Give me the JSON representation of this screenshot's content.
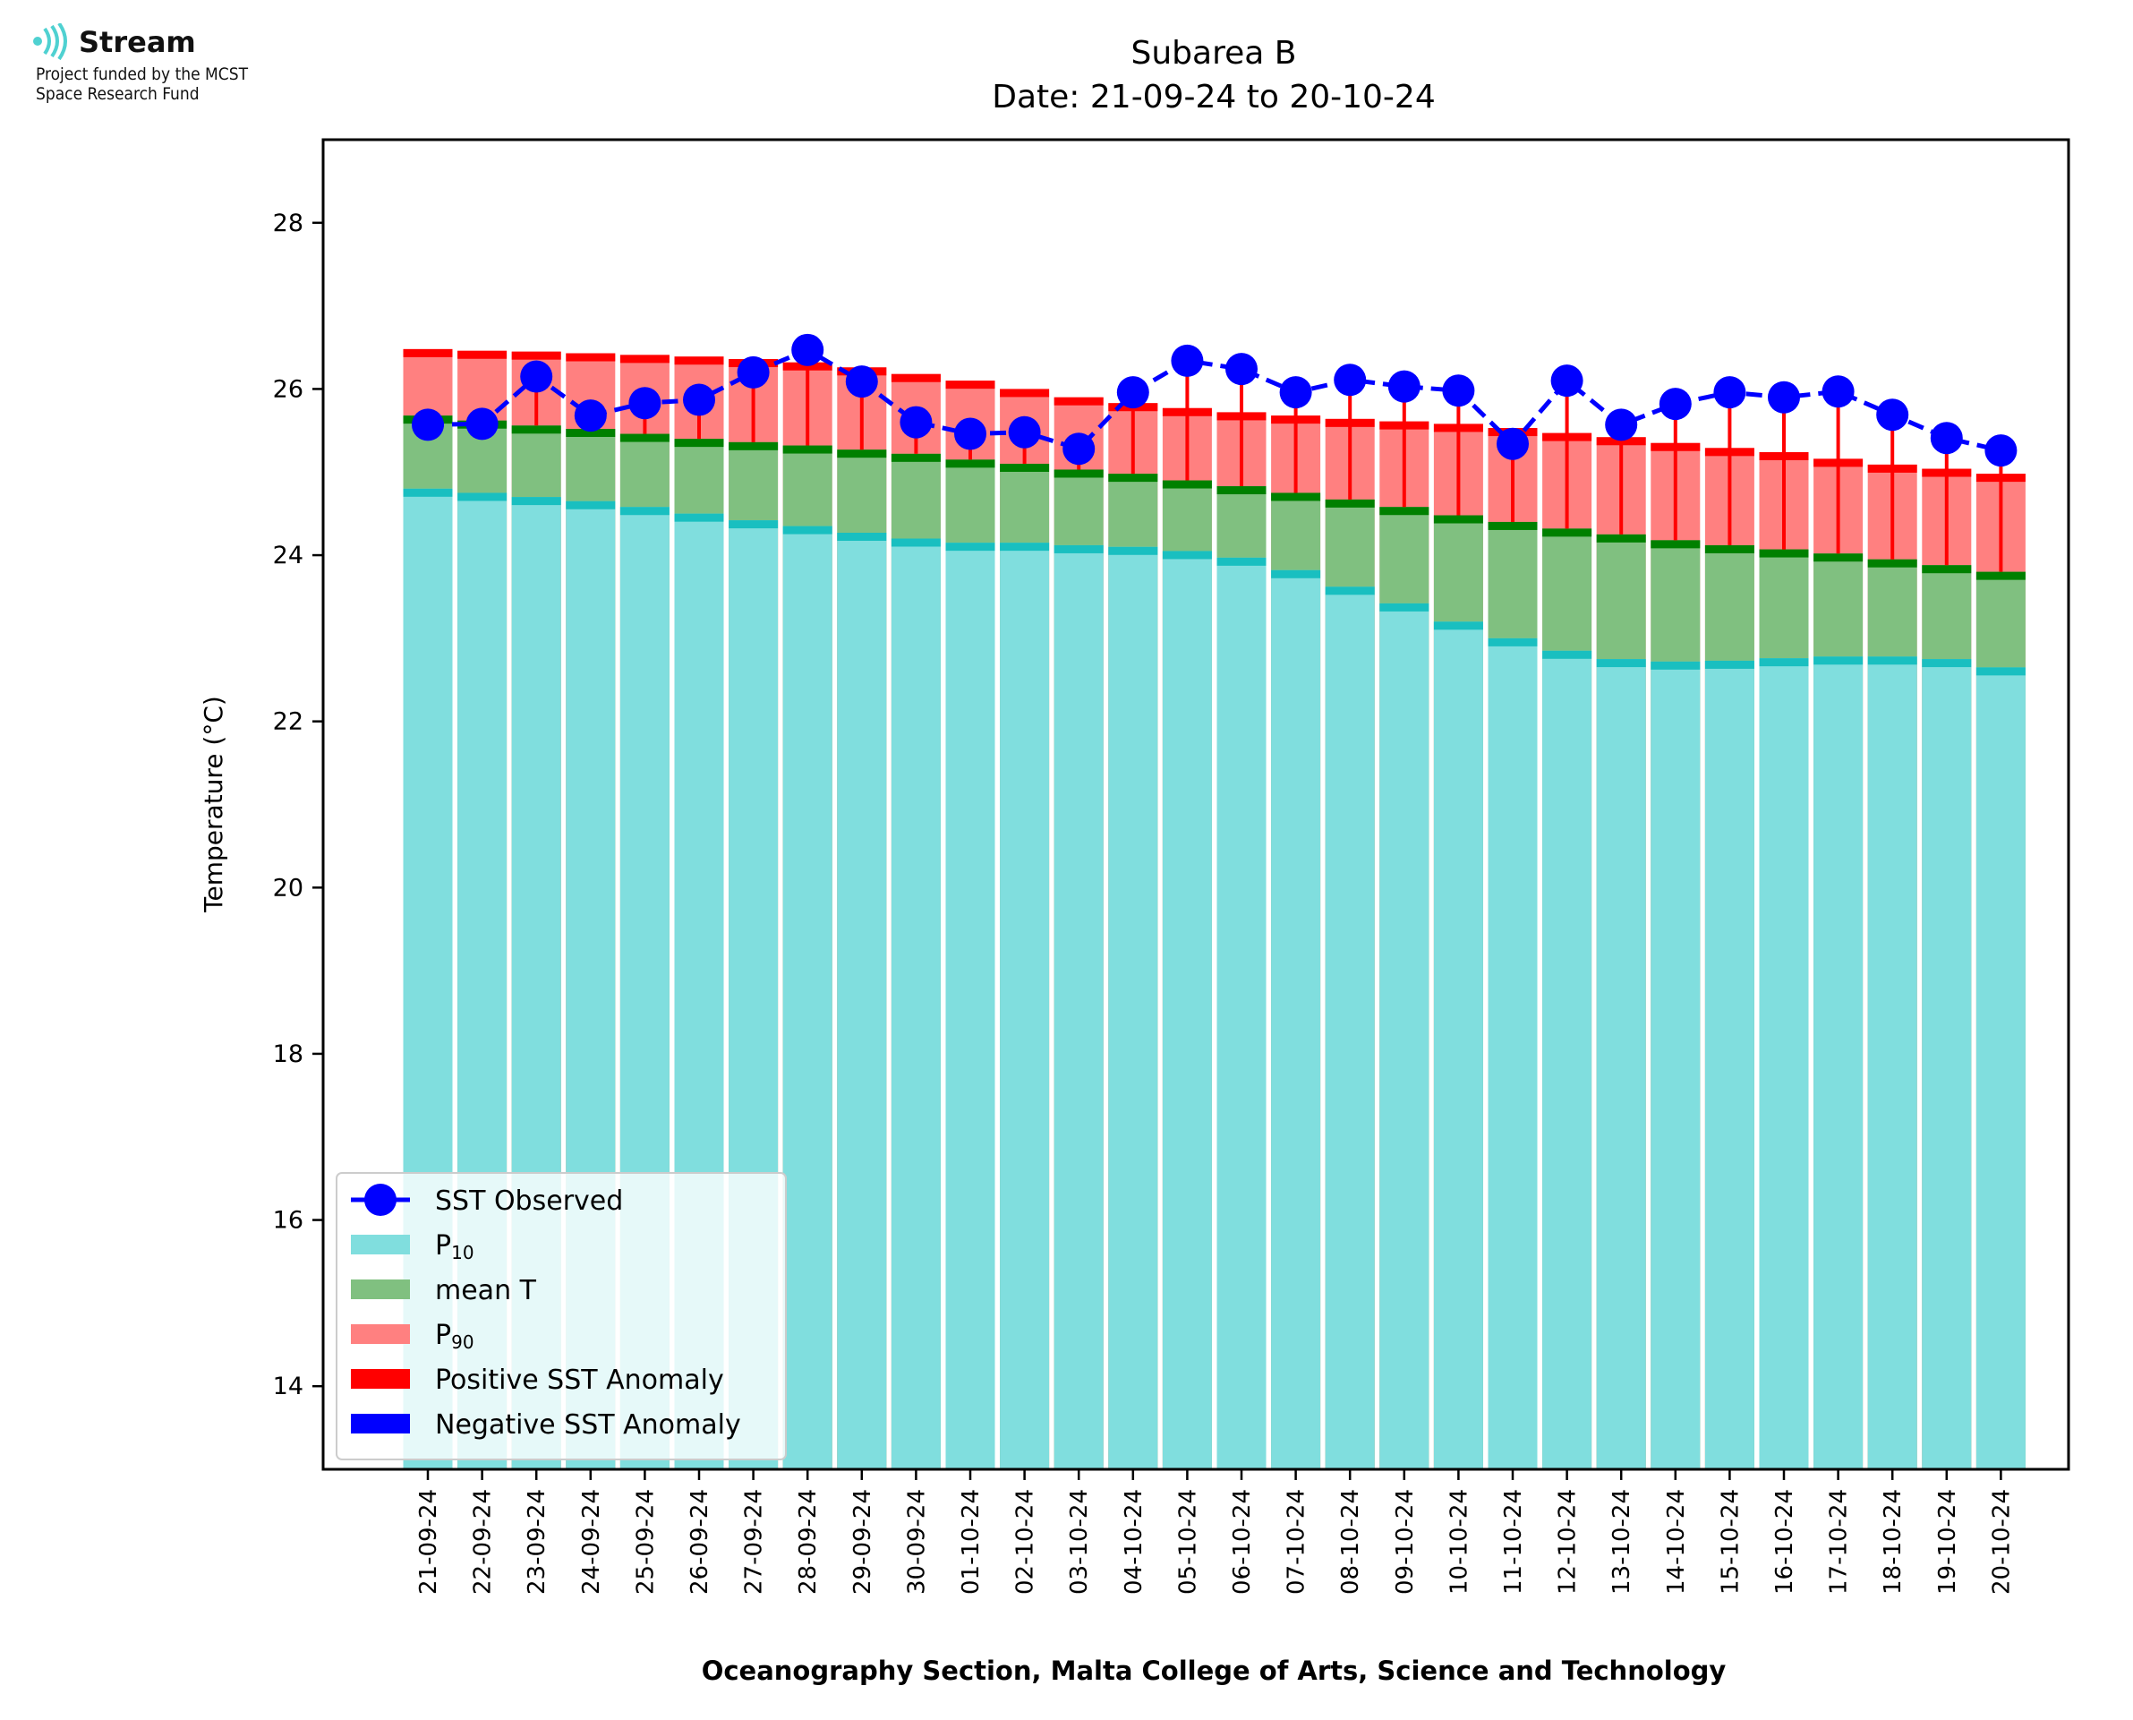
{
  "logo": {
    "name": "Stream",
    "line1": "Project funded by the MCST",
    "line2": "Space Research Fund"
  },
  "chart_data": {
    "type": "bar",
    "title": "Subarea B",
    "subtitle": "Date: 21-09-24 to 20-10-24",
    "xlabel": "Oceanography Section, Malta College of Arts, Science and Technology",
    "ylabel": "Temperature (°C)",
    "ylim": [
      13,
      29
    ],
    "yticks": [
      14,
      16,
      18,
      20,
      22,
      24,
      26,
      28
    ],
    "grid": false,
    "legend_position": "lower-left",
    "colors": {
      "p10": "#80dede",
      "p10_edge": "#19bfc0",
      "mean": "#80c080",
      "mean_edge": "#008000",
      "p90": "#ff8080",
      "p90_edge": "#ff0000",
      "observed": "#0000ff",
      "positive_anomaly": "#ff0000",
      "negative_anomaly": "#0000ff"
    },
    "categories": [
      "21-09-24",
      "22-09-24",
      "23-09-24",
      "24-09-24",
      "25-09-24",
      "26-09-24",
      "27-09-24",
      "28-09-24",
      "29-09-24",
      "30-09-24",
      "01-10-24",
      "02-10-24",
      "03-10-24",
      "04-10-24",
      "05-10-24",
      "06-10-24",
      "07-10-24",
      "08-10-24",
      "09-10-24",
      "10-10-24",
      "11-10-24",
      "12-10-24",
      "13-10-24",
      "14-10-24",
      "15-10-24",
      "16-10-24",
      "17-10-24",
      "18-10-24",
      "19-10-24",
      "20-10-24"
    ],
    "series": [
      {
        "name": "P10",
        "values": [
          24.8,
          24.75,
          24.7,
          24.65,
          24.58,
          24.5,
          24.42,
          24.35,
          24.27,
          24.2,
          24.15,
          24.15,
          24.12,
          24.1,
          24.05,
          23.97,
          23.82,
          23.62,
          23.42,
          23.2,
          23.0,
          22.85,
          22.75,
          22.72,
          22.73,
          22.76,
          22.78,
          22.78,
          22.75,
          22.65
        ]
      },
      {
        "name": "mean T",
        "values": [
          25.68,
          25.62,
          25.56,
          25.52,
          25.46,
          25.4,
          25.36,
          25.32,
          25.27,
          25.22,
          25.15,
          25.1,
          25.03,
          24.98,
          24.9,
          24.83,
          24.75,
          24.67,
          24.58,
          24.48,
          24.4,
          24.32,
          24.25,
          24.18,
          24.12,
          24.07,
          24.02,
          23.95,
          23.88,
          23.8
        ]
      },
      {
        "name": "P90",
        "values": [
          26.48,
          26.46,
          26.45,
          26.43,
          26.41,
          26.39,
          26.36,
          26.32,
          26.26,
          26.18,
          26.1,
          26.0,
          25.9,
          25.83,
          25.77,
          25.72,
          25.68,
          25.64,
          25.61,
          25.58,
          25.53,
          25.47,
          25.42,
          25.35,
          25.29,
          25.24,
          25.16,
          25.09,
          25.04,
          24.98
        ]
      },
      {
        "name": "SST Observed",
        "values": [
          25.57,
          25.58,
          26.15,
          25.68,
          25.83,
          25.87,
          26.2,
          26.47,
          26.09,
          25.6,
          25.46,
          25.48,
          25.28,
          25.96,
          26.34,
          26.24,
          25.96,
          26.11,
          26.03,
          25.98,
          25.34,
          26.1,
          25.57,
          25.82,
          25.96,
          25.9,
          25.97,
          25.69,
          25.41,
          25.26
        ]
      }
    ],
    "legend": [
      "SST Observed",
      "P",
      "mean T",
      "P",
      "Positive SST Anomaly",
      "Negative SST Anomaly"
    ],
    "legend_subscripts": [
      "10",
      "90"
    ]
  }
}
